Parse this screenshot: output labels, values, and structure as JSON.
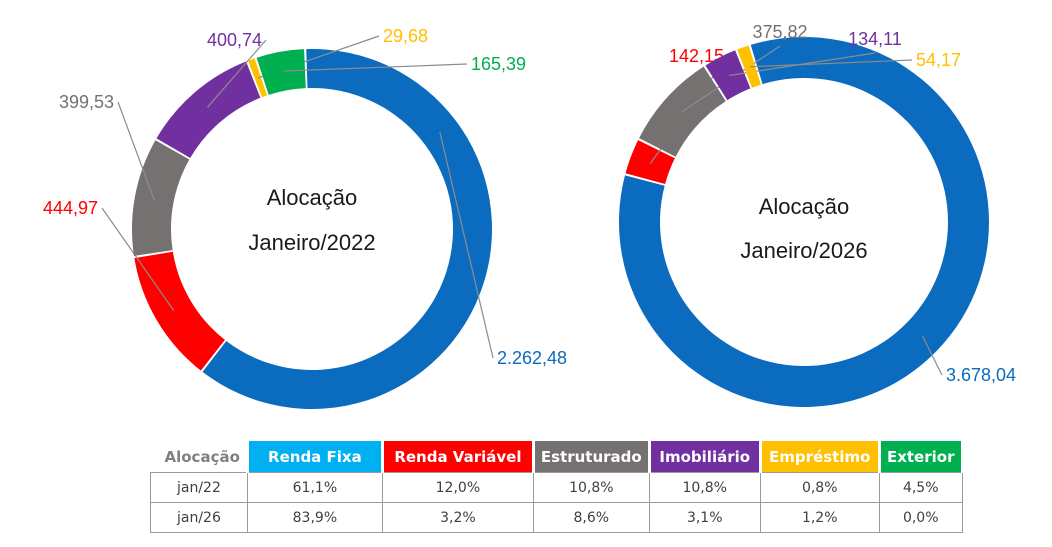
{
  "chart_data": [
    {
      "type": "donut",
      "center_title": "Alocação",
      "center_subtitle": "Janeiro/2022",
      "slices": [
        {
          "category": "Renda Fixa",
          "value": 2262.48,
          "label": "2.262,48",
          "color": "#0B6BBF"
        },
        {
          "category": "Renda Variável",
          "value": 444.97,
          "label": "444,97",
          "color": "#FF0000"
        },
        {
          "category": "Estruturado",
          "value": 399.53,
          "label": "399,53",
          "color": "#767171"
        },
        {
          "category": "Imobiliário",
          "value": 400.74,
          "label": "400,74",
          "color": "#7030A0"
        },
        {
          "category": "Empréstimo",
          "value": 29.68,
          "label": "29,68",
          "color": "#FFC000"
        },
        {
          "category": "Exterior",
          "value": 165.39,
          "label": "165,39",
          "color": "#00B050"
        }
      ]
    },
    {
      "type": "donut",
      "center_title": "Alocação",
      "center_subtitle": "Janeiro/2026",
      "slices": [
        {
          "category": "Renda Fixa",
          "value": 3678.04,
          "label": "3.678,04",
          "color": "#0B6BBF"
        },
        {
          "category": "Renda Variável",
          "value": 142.15,
          "label": "142,15",
          "color": "#FF0000"
        },
        {
          "category": "Estruturado",
          "value": 375.82,
          "label": "375,82",
          "color": "#767171"
        },
        {
          "category": "Imobiliário",
          "value": 134.11,
          "label": "134,11",
          "color": "#7030A0"
        },
        {
          "category": "Empréstimo",
          "value": 54.17,
          "label": "54,17",
          "color": "#FFC000"
        },
        {
          "category": "Exterior",
          "value": 0,
          "label": "",
          "color": "#00B050"
        }
      ]
    },
    {
      "type": "table",
      "header_label": "Alocação",
      "columns": [
        {
          "name": "Renda Fixa",
          "color": "#00B0F0"
        },
        {
          "name": "Renda Variável",
          "color": "#FF0000"
        },
        {
          "name": "Estruturado",
          "color": "#767171"
        },
        {
          "name": "Imobiliário",
          "color": "#7030A0"
        },
        {
          "name": "Empréstimo",
          "color": "#FFC000"
        },
        {
          "name": "Exterior",
          "color": "#00B050"
        }
      ],
      "rows": [
        {
          "label": "jan/22",
          "values": [
            "61,1%",
            "12,0%",
            "10,8%",
            "10,8%",
            "0,8%",
            "4,5%"
          ]
        },
        {
          "label": "jan/26",
          "values": [
            "83,9%",
            "3,2%",
            "8,6%",
            "3,1%",
            "1,2%",
            "0,0%"
          ]
        }
      ]
    }
  ]
}
